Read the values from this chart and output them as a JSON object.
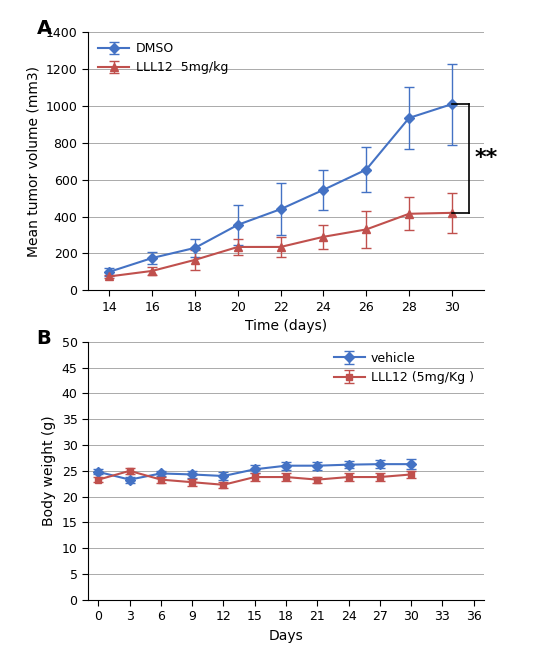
{
  "panel_A": {
    "dmso_x": [
      14,
      16,
      18,
      20,
      22,
      24,
      26,
      28,
      30
    ],
    "dmso_y": [
      100,
      175,
      230,
      355,
      440,
      545,
      655,
      935,
      1010
    ],
    "dmso_err": [
      20,
      30,
      50,
      110,
      140,
      110,
      120,
      170,
      220
    ],
    "lll12_y": [
      75,
      105,
      165,
      235,
      235,
      290,
      330,
      415,
      420
    ],
    "lll12_err": [
      10,
      20,
      55,
      45,
      55,
      65,
      100,
      90,
      110
    ],
    "xlabel": "Time (days)",
    "ylabel": "Mean tumor volume (mm3)",
    "xlim": [
      13,
      31.5
    ],
    "ylim": [
      0,
      1400
    ],
    "yticks": [
      0,
      200,
      400,
      600,
      800,
      1000,
      1200,
      1400
    ],
    "xticks": [
      14,
      16,
      18,
      20,
      22,
      24,
      26,
      28,
      30
    ],
    "dmso_color": "#4472C4",
    "lll12_color": "#C0504D",
    "legend_dmso": "DMSO",
    "legend_lll12": "LLL12  5mg/kg",
    "label": "A",
    "significance": "**"
  },
  "panel_B": {
    "vehicle_x": [
      0,
      3,
      6,
      9,
      12,
      15,
      18,
      21,
      24,
      27,
      30
    ],
    "vehicle_y": [
      24.8,
      23.3,
      24.5,
      24.3,
      24.0,
      25.3,
      26.0,
      26.0,
      26.2,
      26.3,
      26.3
    ],
    "vehicle_err": [
      0.5,
      0.6,
      0.5,
      0.6,
      0.7,
      0.8,
      0.8,
      0.8,
      0.7,
      0.8,
      0.9
    ],
    "lll12_y": [
      23.3,
      25.0,
      23.3,
      22.8,
      22.3,
      23.8,
      23.8,
      23.3,
      23.8,
      23.8,
      24.3
    ],
    "lll12_err": [
      0.5,
      0.6,
      0.6,
      0.7,
      0.6,
      0.7,
      0.7,
      0.6,
      0.7,
      0.7,
      0.6
    ],
    "xlabel": "Days",
    "ylabel": "Body weight (g)",
    "xlim": [
      -1,
      37
    ],
    "ylim": [
      0,
      50
    ],
    "yticks": [
      0,
      5,
      10,
      15,
      20,
      25,
      30,
      35,
      40,
      45,
      50
    ],
    "xticks": [
      0,
      3,
      6,
      9,
      12,
      15,
      18,
      21,
      24,
      27,
      30,
      33,
      36
    ],
    "vehicle_color": "#4472C4",
    "lll12_color": "#C0504D",
    "legend_vehicle": "vehicle",
    "legend_lll12": "LLL12 (5mg/Kg )",
    "label": "B"
  },
  "bg_color": "#FFFFFF",
  "grid_color": "#AAAAAA"
}
